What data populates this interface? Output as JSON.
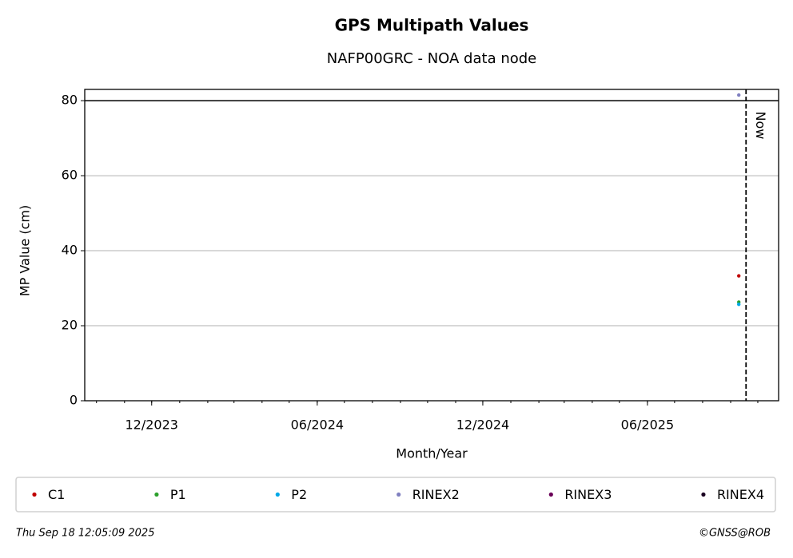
{
  "chart_data": {
    "type": "scatter",
    "title": "GPS Multipath Values",
    "subtitle": "NAFP00GRC - NOA data node",
    "x_label": "Month/Year",
    "y_label": "MP Value (cm)",
    "x": [
      "2025-09-10"
    ],
    "series": [
      {
        "name": "C1",
        "color": "#c00000",
        "values": [
          33.3
        ]
      },
      {
        "name": "P1",
        "color": "#2ca02c",
        "values": [
          26.3
        ]
      },
      {
        "name": "P2",
        "color": "#00a8e8",
        "values": [
          25.7
        ]
      },
      {
        "name": "RINEX2",
        "color": "#8080c0",
        "values": [
          81.5
        ]
      },
      {
        "name": "RINEX3",
        "color": "#6a0058",
        "values": [
          null
        ]
      },
      {
        "name": "RINEX4",
        "color": "#1a0020",
        "values": [
          null
        ]
      }
    ],
    "xlim": [
      "2023-09-18",
      "2025-10-24"
    ],
    "xticks": [
      {
        "value": "2023-12-01",
        "label": "12/2023"
      },
      {
        "value": "2024-06-01",
        "label": "06/2024"
      },
      {
        "value": "2024-12-01",
        "label": "12/2024"
      },
      {
        "value": "2025-06-01",
        "label": "06/2025"
      }
    ],
    "ylim": [
      0,
      83
    ],
    "yticks": [
      0,
      20,
      40,
      60,
      80
    ],
    "grid": true,
    "hline": 80,
    "now_line": {
      "x": "2025-09-18",
      "label": "Now"
    },
    "legend": "bottom",
    "footer_left": "Thu Sep 18 12:05:09 2025",
    "footer_right": "©GNSS@ROB"
  }
}
